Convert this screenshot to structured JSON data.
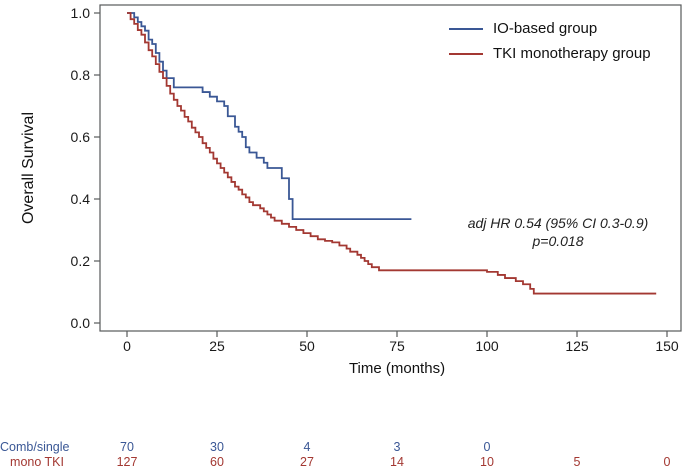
{
  "figure": {
    "annotation": {
      "line1": "adj HR 0.54 (95% CI 0.3-0.9)",
      "line2": "p=0.018"
    },
    "colors": {
      "io_blue": "#3a5795",
      "tki_red": "#a33832",
      "axis": "#58595b",
      "text": "#1a1a1a"
    }
  },
  "chart_data": {
    "type": "line",
    "subtype": "kaplan-meier-step",
    "title": "",
    "xlabel": "Time (months)",
    "ylabel": "Overall Survival",
    "xlim": [
      0,
      150
    ],
    "ylim": [
      0.0,
      1.0
    ],
    "x_ticks": [
      0,
      25,
      50,
      75,
      100,
      125,
      150
    ],
    "y_ticks": [
      0.0,
      0.2,
      0.4,
      0.6,
      0.8,
      1.0
    ],
    "y_tick_labels": [
      "0.0",
      "0.2",
      "0.4",
      "0.6",
      "0.8",
      "1.0"
    ],
    "grid": false,
    "legend_position": "top-right",
    "annotation_text": "adj HR 0.54 (95% CI 0.3-0.9) p=0.018",
    "series": [
      {
        "name": "IO-based group",
        "color": "#3a5795",
        "end_time": 79,
        "points": [
          [
            0,
            1.0
          ],
          [
            2,
            0.986
          ],
          [
            3,
            0.971
          ],
          [
            4,
            0.957
          ],
          [
            5,
            0.943
          ],
          [
            6,
            0.914
          ],
          [
            7,
            0.9
          ],
          [
            8,
            0.871
          ],
          [
            9,
            0.843
          ],
          [
            10,
            0.814
          ],
          [
            11,
            0.79
          ],
          [
            13,
            0.76
          ],
          [
            21,
            0.745
          ],
          [
            23,
            0.73
          ],
          [
            25,
            0.715
          ],
          [
            27,
            0.7
          ],
          [
            28,
            0.667
          ],
          [
            30,
            0.633
          ],
          [
            31,
            0.617
          ],
          [
            32,
            0.6
          ],
          [
            33,
            0.567
          ],
          [
            34,
            0.55
          ],
          [
            36,
            0.533
          ],
          [
            38,
            0.517
          ],
          [
            39,
            0.5
          ],
          [
            43,
            0.467
          ],
          [
            45,
            0.4
          ],
          [
            46,
            0.335
          ]
        ]
      },
      {
        "name": "TKI monotherapy group",
        "color": "#a33832",
        "end_time": 147,
        "points": [
          [
            0,
            1.0
          ],
          [
            1,
            0.98
          ],
          [
            2,
            0.965
          ],
          [
            3,
            0.945
          ],
          [
            4,
            0.93
          ],
          [
            5,
            0.905
          ],
          [
            6,
            0.88
          ],
          [
            7,
            0.86
          ],
          [
            8,
            0.835
          ],
          [
            9,
            0.81
          ],
          [
            10,
            0.79
          ],
          [
            11,
            0.765
          ],
          [
            12,
            0.74
          ],
          [
            13,
            0.72
          ],
          [
            14,
            0.7
          ],
          [
            15,
            0.685
          ],
          [
            16,
            0.665
          ],
          [
            17,
            0.65
          ],
          [
            18,
            0.63
          ],
          [
            19,
            0.615
          ],
          [
            20,
            0.6
          ],
          [
            21,
            0.58
          ],
          [
            22,
            0.565
          ],
          [
            23,
            0.55
          ],
          [
            24,
            0.53
          ],
          [
            25,
            0.515
          ],
          [
            26,
            0.5
          ],
          [
            27,
            0.485
          ],
          [
            28,
            0.47
          ],
          [
            29,
            0.455
          ],
          [
            30,
            0.44
          ],
          [
            31,
            0.43
          ],
          [
            32,
            0.415
          ],
          [
            33,
            0.405
          ],
          [
            34,
            0.39
          ],
          [
            35,
            0.38
          ],
          [
            37,
            0.37
          ],
          [
            38,
            0.36
          ],
          [
            39,
            0.35
          ],
          [
            40,
            0.34
          ],
          [
            41,
            0.33
          ],
          [
            43,
            0.32
          ],
          [
            45,
            0.31
          ],
          [
            47,
            0.3
          ],
          [
            49,
            0.29
          ],
          [
            51,
            0.28
          ],
          [
            53,
            0.27
          ],
          [
            55,
            0.265
          ],
          [
            57,
            0.26
          ],
          [
            59,
            0.25
          ],
          [
            61,
            0.24
          ],
          [
            62,
            0.23
          ],
          [
            64,
            0.22
          ],
          [
            65,
            0.21
          ],
          [
            66,
            0.2
          ],
          [
            67,
            0.19
          ],
          [
            68,
            0.18
          ],
          [
            70,
            0.17
          ],
          [
            100,
            0.165
          ],
          [
            103,
            0.155
          ],
          [
            105,
            0.145
          ],
          [
            108,
            0.135
          ],
          [
            110,
            0.125
          ],
          [
            112,
            0.11
          ],
          [
            113,
            0.095
          ]
        ]
      }
    ]
  },
  "risk_table": {
    "rows": [
      {
        "label": "Comb/single",
        "color": "#3a5795",
        "times": [
          0,
          25,
          50,
          75,
          100
        ],
        "counts": [
          "70",
          "30",
          "4",
          "3",
          "0"
        ]
      },
      {
        "label": "mono TKI",
        "color": "#a33832",
        "times": [
          0,
          25,
          50,
          75,
          100,
          125,
          150
        ],
        "counts": [
          "127",
          "60",
          "27",
          "14",
          "10",
          "5",
          "0"
        ]
      }
    ]
  }
}
